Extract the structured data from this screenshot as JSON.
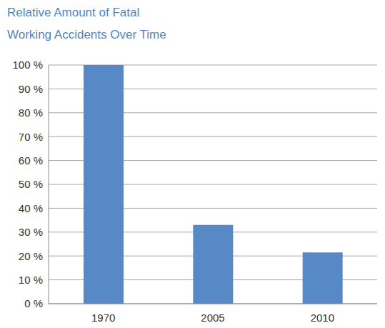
{
  "chart_data": {
    "type": "bar",
    "title": "Relative Amount of Fatal Working Accidents Over Time",
    "categories": [
      "1970",
      "2005",
      "2010"
    ],
    "values": [
      100,
      33,
      21.5
    ],
    "color": "#5689c6",
    "ylim": [
      0,
      100
    ],
    "yticks": [
      {
        "value": 0,
        "label": "0 %"
      },
      {
        "value": 10,
        "label": "10 %"
      },
      {
        "value": 20,
        "label": "20 %"
      },
      {
        "value": 30,
        "label": "30 %"
      },
      {
        "value": 40,
        "label": "40 %"
      },
      {
        "value": 50,
        "label": "50 %"
      },
      {
        "value": 60,
        "label": "60 %"
      },
      {
        "value": 70,
        "label": "70 %"
      },
      {
        "value": 80,
        "label": "80 %"
      },
      {
        "value": 90,
        "label": "90 %"
      },
      {
        "value": 100,
        "label": "100 %"
      }
    ],
    "grid": true
  }
}
